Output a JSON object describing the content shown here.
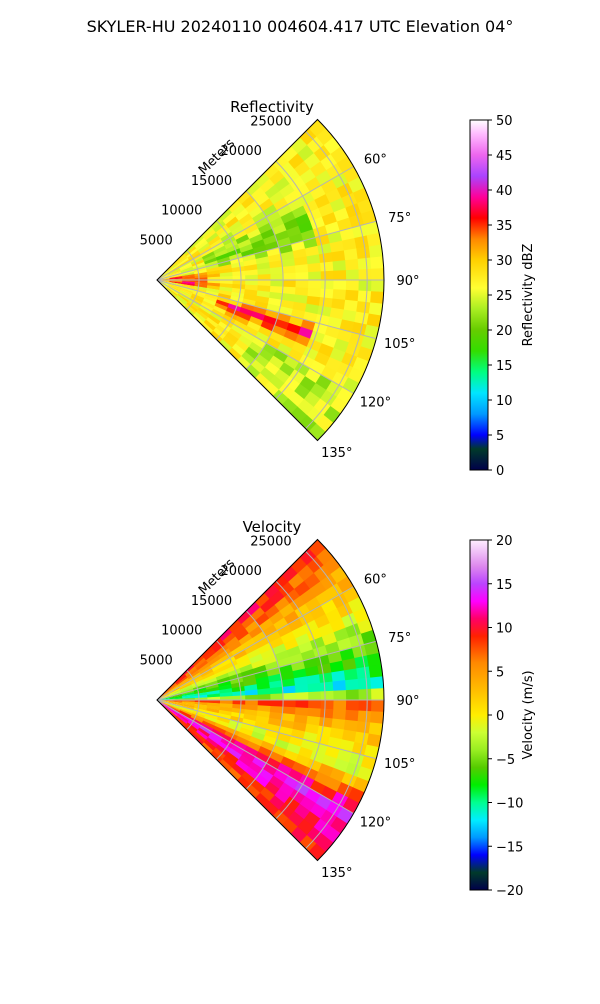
{
  "figure": {
    "title": "SKYLER-HU  20240110  004604.417 UTC Elevation 04°"
  },
  "chart_data": [
    {
      "type": "heatmap",
      "projection": "polar-sector",
      "title": "Reflectivity",
      "radial_label": "Meters",
      "r_ticks": [
        5000,
        10000,
        15000,
        20000,
        25000
      ],
      "r_tick_labels": [
        "5000",
        "10000",
        "15000",
        "20000",
        "25000"
      ],
      "rlim": [
        0,
        27000
      ],
      "azimuth_range_deg": [
        45,
        135
      ],
      "theta_ticks": [
        60,
        75,
        90,
        105,
        120,
        135
      ],
      "theta_tick_labels": [
        "60°",
        "75°",
        "90°",
        "105°",
        "120°",
        "135°"
      ],
      "grid": true,
      "colorbar": {
        "label": "Reflectivity dBZ",
        "range": [
          0,
          50
        ],
        "ticks": [
          0,
          5,
          10,
          15,
          20,
          25,
          30,
          35,
          40,
          45,
          50
        ],
        "tick_labels": [
          "0",
          "5",
          "10",
          "15",
          "20",
          "25",
          "30",
          "35",
          "40",
          "45",
          "50"
        ],
        "stops": [
          [
            0,
            "#00004a"
          ],
          [
            3,
            "#003a2a"
          ],
          [
            5,
            "#0000ff"
          ],
          [
            8,
            "#0099ff"
          ],
          [
            11,
            "#00e5ff"
          ],
          [
            14,
            "#00ff80"
          ],
          [
            17,
            "#33dd00"
          ],
          [
            20,
            "#66cc00"
          ],
          [
            23,
            "#aaee22"
          ],
          [
            26,
            "#ffff33"
          ],
          [
            30,
            "#ffd000"
          ],
          [
            33,
            "#ff8800"
          ],
          [
            36,
            "#ff0000"
          ],
          [
            39,
            "#ff0099"
          ],
          [
            42,
            "#aa44ff"
          ],
          [
            45,
            "#ee66ee"
          ],
          [
            48,
            "#ffbbff"
          ],
          [
            50,
            "#ffffff"
          ]
        ]
      }
    },
    {
      "type": "heatmap",
      "projection": "polar-sector",
      "title": "Velocity",
      "radial_label": "Meters",
      "r_ticks": [
        5000,
        10000,
        15000,
        20000,
        25000
      ],
      "r_tick_labels": [
        "5000",
        "10000",
        "15000",
        "20000",
        "25000"
      ],
      "rlim": [
        0,
        27000
      ],
      "azimuth_range_deg": [
        45,
        135
      ],
      "theta_ticks": [
        60,
        75,
        90,
        105,
        120,
        135
      ],
      "theta_tick_labels": [
        "60°",
        "75°",
        "90°",
        "105°",
        "120°",
        "135°"
      ],
      "grid": true,
      "colorbar": {
        "label": "Velocity (m/s)",
        "range": [
          -20,
          20
        ],
        "ticks": [
          -20,
          -15,
          -10,
          -5,
          0,
          5,
          10,
          15,
          20
        ],
        "tick_labels": [
          "−20",
          "−15",
          "−10",
          "−5",
          "0",
          "5",
          "10",
          "15",
          "20"
        ],
        "stops": [
          [
            -20,
            "#00004a"
          ],
          [
            -18,
            "#003a2a"
          ],
          [
            -16,
            "#0000ff"
          ],
          [
            -14,
            "#0099ff"
          ],
          [
            -12,
            "#00eeff"
          ],
          [
            -10,
            "#00ff90"
          ],
          [
            -8,
            "#00ee00"
          ],
          [
            -6,
            "#55cc00"
          ],
          [
            -4,
            "#99ee22"
          ],
          [
            -2,
            "#ccff33"
          ],
          [
            0,
            "#ffee00"
          ],
          [
            3,
            "#ffbb00"
          ],
          [
            6,
            "#ff8800"
          ],
          [
            9,
            "#ff2200"
          ],
          [
            11,
            "#ff0066"
          ],
          [
            13,
            "#ff00ff"
          ],
          [
            15,
            "#bb44ff"
          ],
          [
            17,
            "#dd88ee"
          ],
          [
            20,
            "#ffeeff"
          ]
        ]
      }
    }
  ]
}
